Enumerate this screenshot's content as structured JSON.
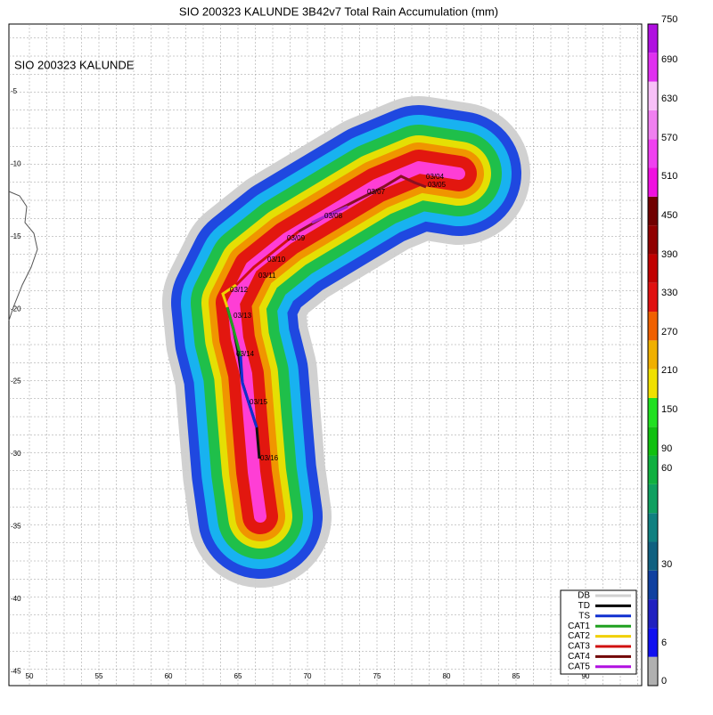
{
  "title": "SIO 200323 KALUNDE 3B42v7 Total Rain Accumulation (mm)",
  "map_label": "SIO 200323 KALUNDE",
  "lat_labels": [
    "-5",
    "-10",
    "-15",
    "-20",
    "-25",
    "-30",
    "-35",
    "-40",
    "-45"
  ],
  "lon_labels": [
    "50",
    "55",
    "60",
    "65",
    "70",
    "75",
    "80",
    "85",
    "90"
  ],
  "colorbar_labels": [
    "750",
    "690",
    "630",
    "570",
    "510",
    "450",
    "390",
    "330",
    "270",
    "210",
    "150",
    "90",
    "60",
    "30",
    "6",
    "0"
  ],
  "legend": [
    "DB",
    "TD",
    "TS",
    "CAT1",
    "CAT2",
    "CAT3",
    "CAT4",
    "CAT5"
  ],
  "track_labels": [
    "03/04",
    "03/05",
    "03/07",
    "03/08",
    "03/09",
    "03/10",
    "03/11",
    "03/12",
    "03/13",
    "03/14",
    "03/15",
    "03/16"
  ]
}
